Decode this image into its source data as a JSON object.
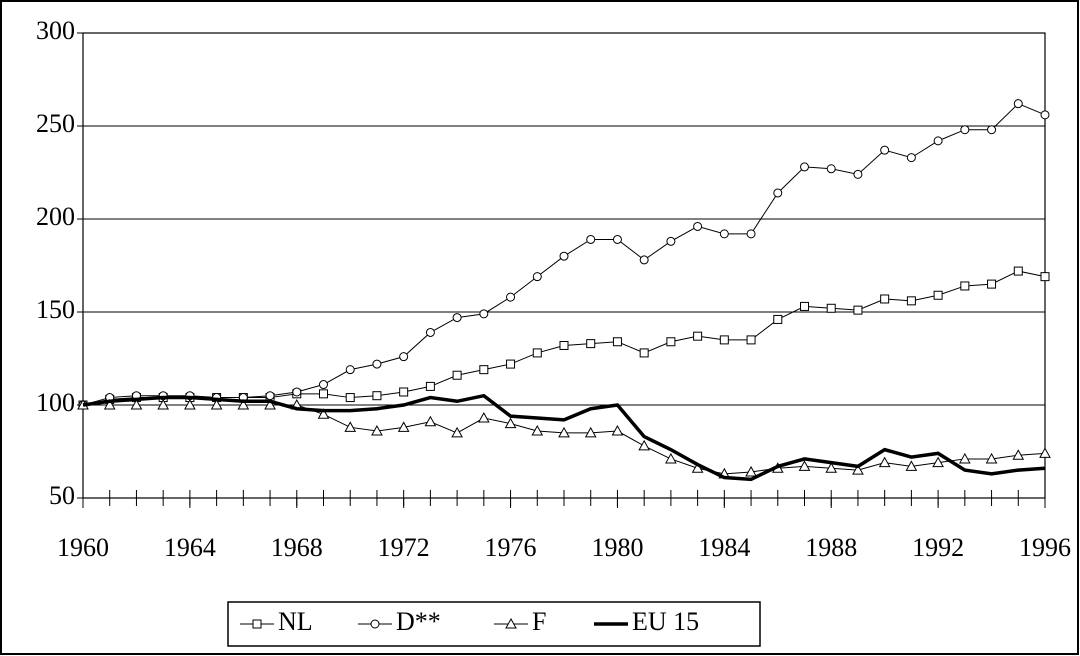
{
  "chart_data": {
    "type": "line",
    "x": [
      1960,
      1961,
      1962,
      1963,
      1964,
      1965,
      1966,
      1967,
      1968,
      1969,
      1970,
      1971,
      1972,
      1973,
      1974,
      1975,
      1976,
      1977,
      1978,
      1979,
      1980,
      1981,
      1982,
      1983,
      1984,
      1985,
      1986,
      1987,
      1988,
      1989,
      1990,
      1991,
      1992,
      1993,
      1994,
      1995,
      1996
    ],
    "xlim": [
      1960,
      1996
    ],
    "xticks": [
      1960,
      1964,
      1968,
      1972,
      1976,
      1980,
      1984,
      1988,
      1992,
      1996
    ],
    "ylim": [
      50,
      300
    ],
    "yticks": [
      50,
      100,
      150,
      200,
      250,
      300
    ],
    "grid": true,
    "legend": "bottom",
    "series": [
      {
        "name": "NL",
        "color": "#000000",
        "marker": "square",
        "line_width": 1,
        "values": [
          100,
          103,
          104,
          104,
          104,
          104,
          104,
          104,
          106,
          106,
          104,
          105,
          107,
          110,
          116,
          119,
          122,
          128,
          132,
          133,
          134,
          128,
          134,
          137,
          135,
          135,
          146,
          153,
          152,
          151,
          157,
          156,
          159,
          164,
          165,
          172,
          169
        ]
      },
      {
        "name": "D**",
        "color": "#000000",
        "marker": "circle",
        "line_width": 1,
        "values": [
          100,
          104,
          105,
          105,
          105,
          104,
          104,
          105,
          107,
          111,
          119,
          122,
          126,
          139,
          147,
          149,
          158,
          169,
          180,
          189,
          189,
          178,
          188,
          196,
          192,
          192,
          214,
          228,
          227,
          224,
          237,
          233,
          242,
          248,
          248,
          262,
          256
        ]
      },
      {
        "name": "F",
        "color": "#000000",
        "marker": "triangle",
        "line_width": 1,
        "values": [
          100,
          100,
          100,
          100,
          100,
          100,
          100,
          100,
          100,
          95,
          88,
          86,
          88,
          91,
          85,
          93,
          90,
          86,
          85,
          85,
          86,
          78,
          71,
          66,
          63,
          64,
          66,
          67,
          66,
          65,
          69,
          67,
          69,
          71,
          71,
          73,
          74
        ]
      },
      {
        "name": "EU 15",
        "color": "#000000",
        "marker": "none",
        "line_width": 3.5,
        "values": [
          100,
          102,
          103,
          104,
          104,
          103,
          102,
          102,
          98,
          97,
          97,
          98,
          100,
          104,
          102,
          105,
          94,
          93,
          92,
          98,
          100,
          83,
          76,
          68,
          61,
          60,
          67,
          71,
          69,
          67,
          76,
          72,
          74,
          65,
          63,
          65,
          66
        ]
      }
    ]
  }
}
